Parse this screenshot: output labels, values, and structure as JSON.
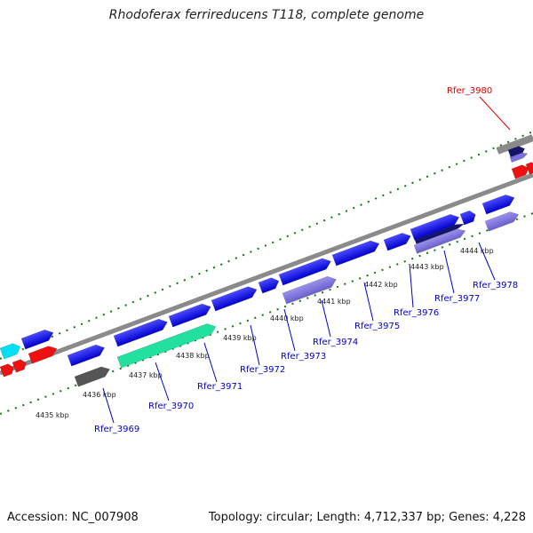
{
  "title": "Rhodoferax ferrireducens T118, complete genome",
  "footer": {
    "accession": "Accession: NC_007908",
    "summary": "Topology: circular; Length: 4,712,337 bp; Genes: 4,228"
  },
  "ticks": [
    "4435 kbp",
    "4436 kbp",
    "4437 kbp",
    "4438 kbp",
    "4439 kbp",
    "4440 kbp",
    "4441 kbp",
    "4442 kbp",
    "4443 kbp",
    "4444 kbp"
  ],
  "genes": [
    {
      "label": "Rfer_3969",
      "color": "#0000cc"
    },
    {
      "label": "Rfer_3970",
      "color": "#0000cc"
    },
    {
      "label": "Rfer_3971",
      "color": "#0000cc"
    },
    {
      "label": "Rfer_3972",
      "color": "#0000cc"
    },
    {
      "label": "Rfer_3973",
      "color": "#0000cc"
    },
    {
      "label": "Rfer_3974",
      "color": "#0000cc"
    },
    {
      "label": "Rfer_3975",
      "color": "#0000cc"
    },
    {
      "label": "Rfer_3976",
      "color": "#0000cc"
    },
    {
      "label": "Rfer_3977",
      "color": "#0000cc"
    },
    {
      "label": "Rfer_3978",
      "color": "#0000cc"
    },
    {
      "label": "Rfer_3980",
      "color": "#dd0000"
    }
  ],
  "colors": {
    "cds_forward": "#1a1aee",
    "cds_reverse_light": "#7b70dd",
    "cds_dark_navy": "#14146e",
    "rrna_teal": "#22e0a0",
    "trna_gray": "#555555",
    "cyan": "#00e0f0",
    "red": "#ee1111",
    "backbone": "#8a8a8a",
    "tick_green": "#117711"
  }
}
